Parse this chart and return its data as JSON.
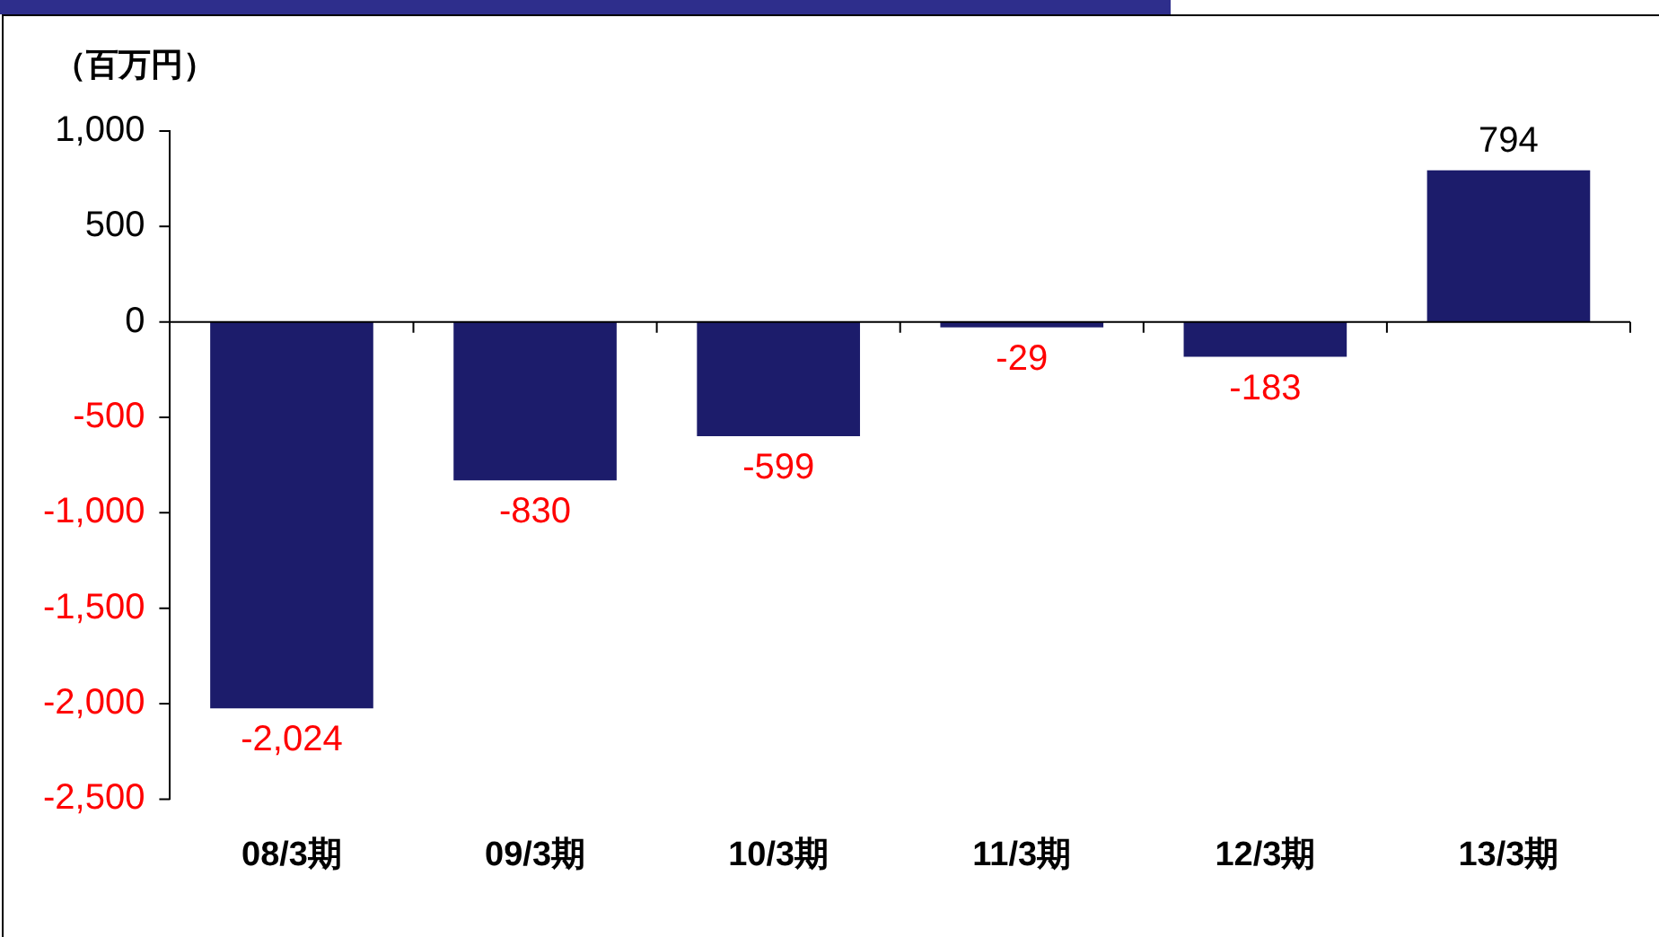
{
  "chart_data": {
    "type": "bar",
    "ylabel": "（百万円）",
    "categories": [
      "08/3期",
      "09/3期",
      "10/3期",
      "11/3期",
      "12/3期",
      "13/3期"
    ],
    "values": [
      -2024,
      -830,
      -599,
      -29,
      -183,
      794
    ],
    "color": "#1c1c6b",
    "ylim": [
      -2500,
      1000
    ],
    "yticks": [
      {
        "value": 1000,
        "label": "1,000"
      },
      500,
      0,
      -500,
      {
        "value": -1000,
        "label": "-1,000"
      },
      {
        "value": -1500,
        "label": "-1,500"
      },
      {
        "value": -2000,
        "label": "-2,000"
      },
      {
        "value": -2500,
        "label": "-2,500"
      }
    ],
    "value_labels": [
      "-2,024",
      "-830",
      "-599",
      "-29",
      "-183",
      "794"
    ],
    "legend": false
  }
}
